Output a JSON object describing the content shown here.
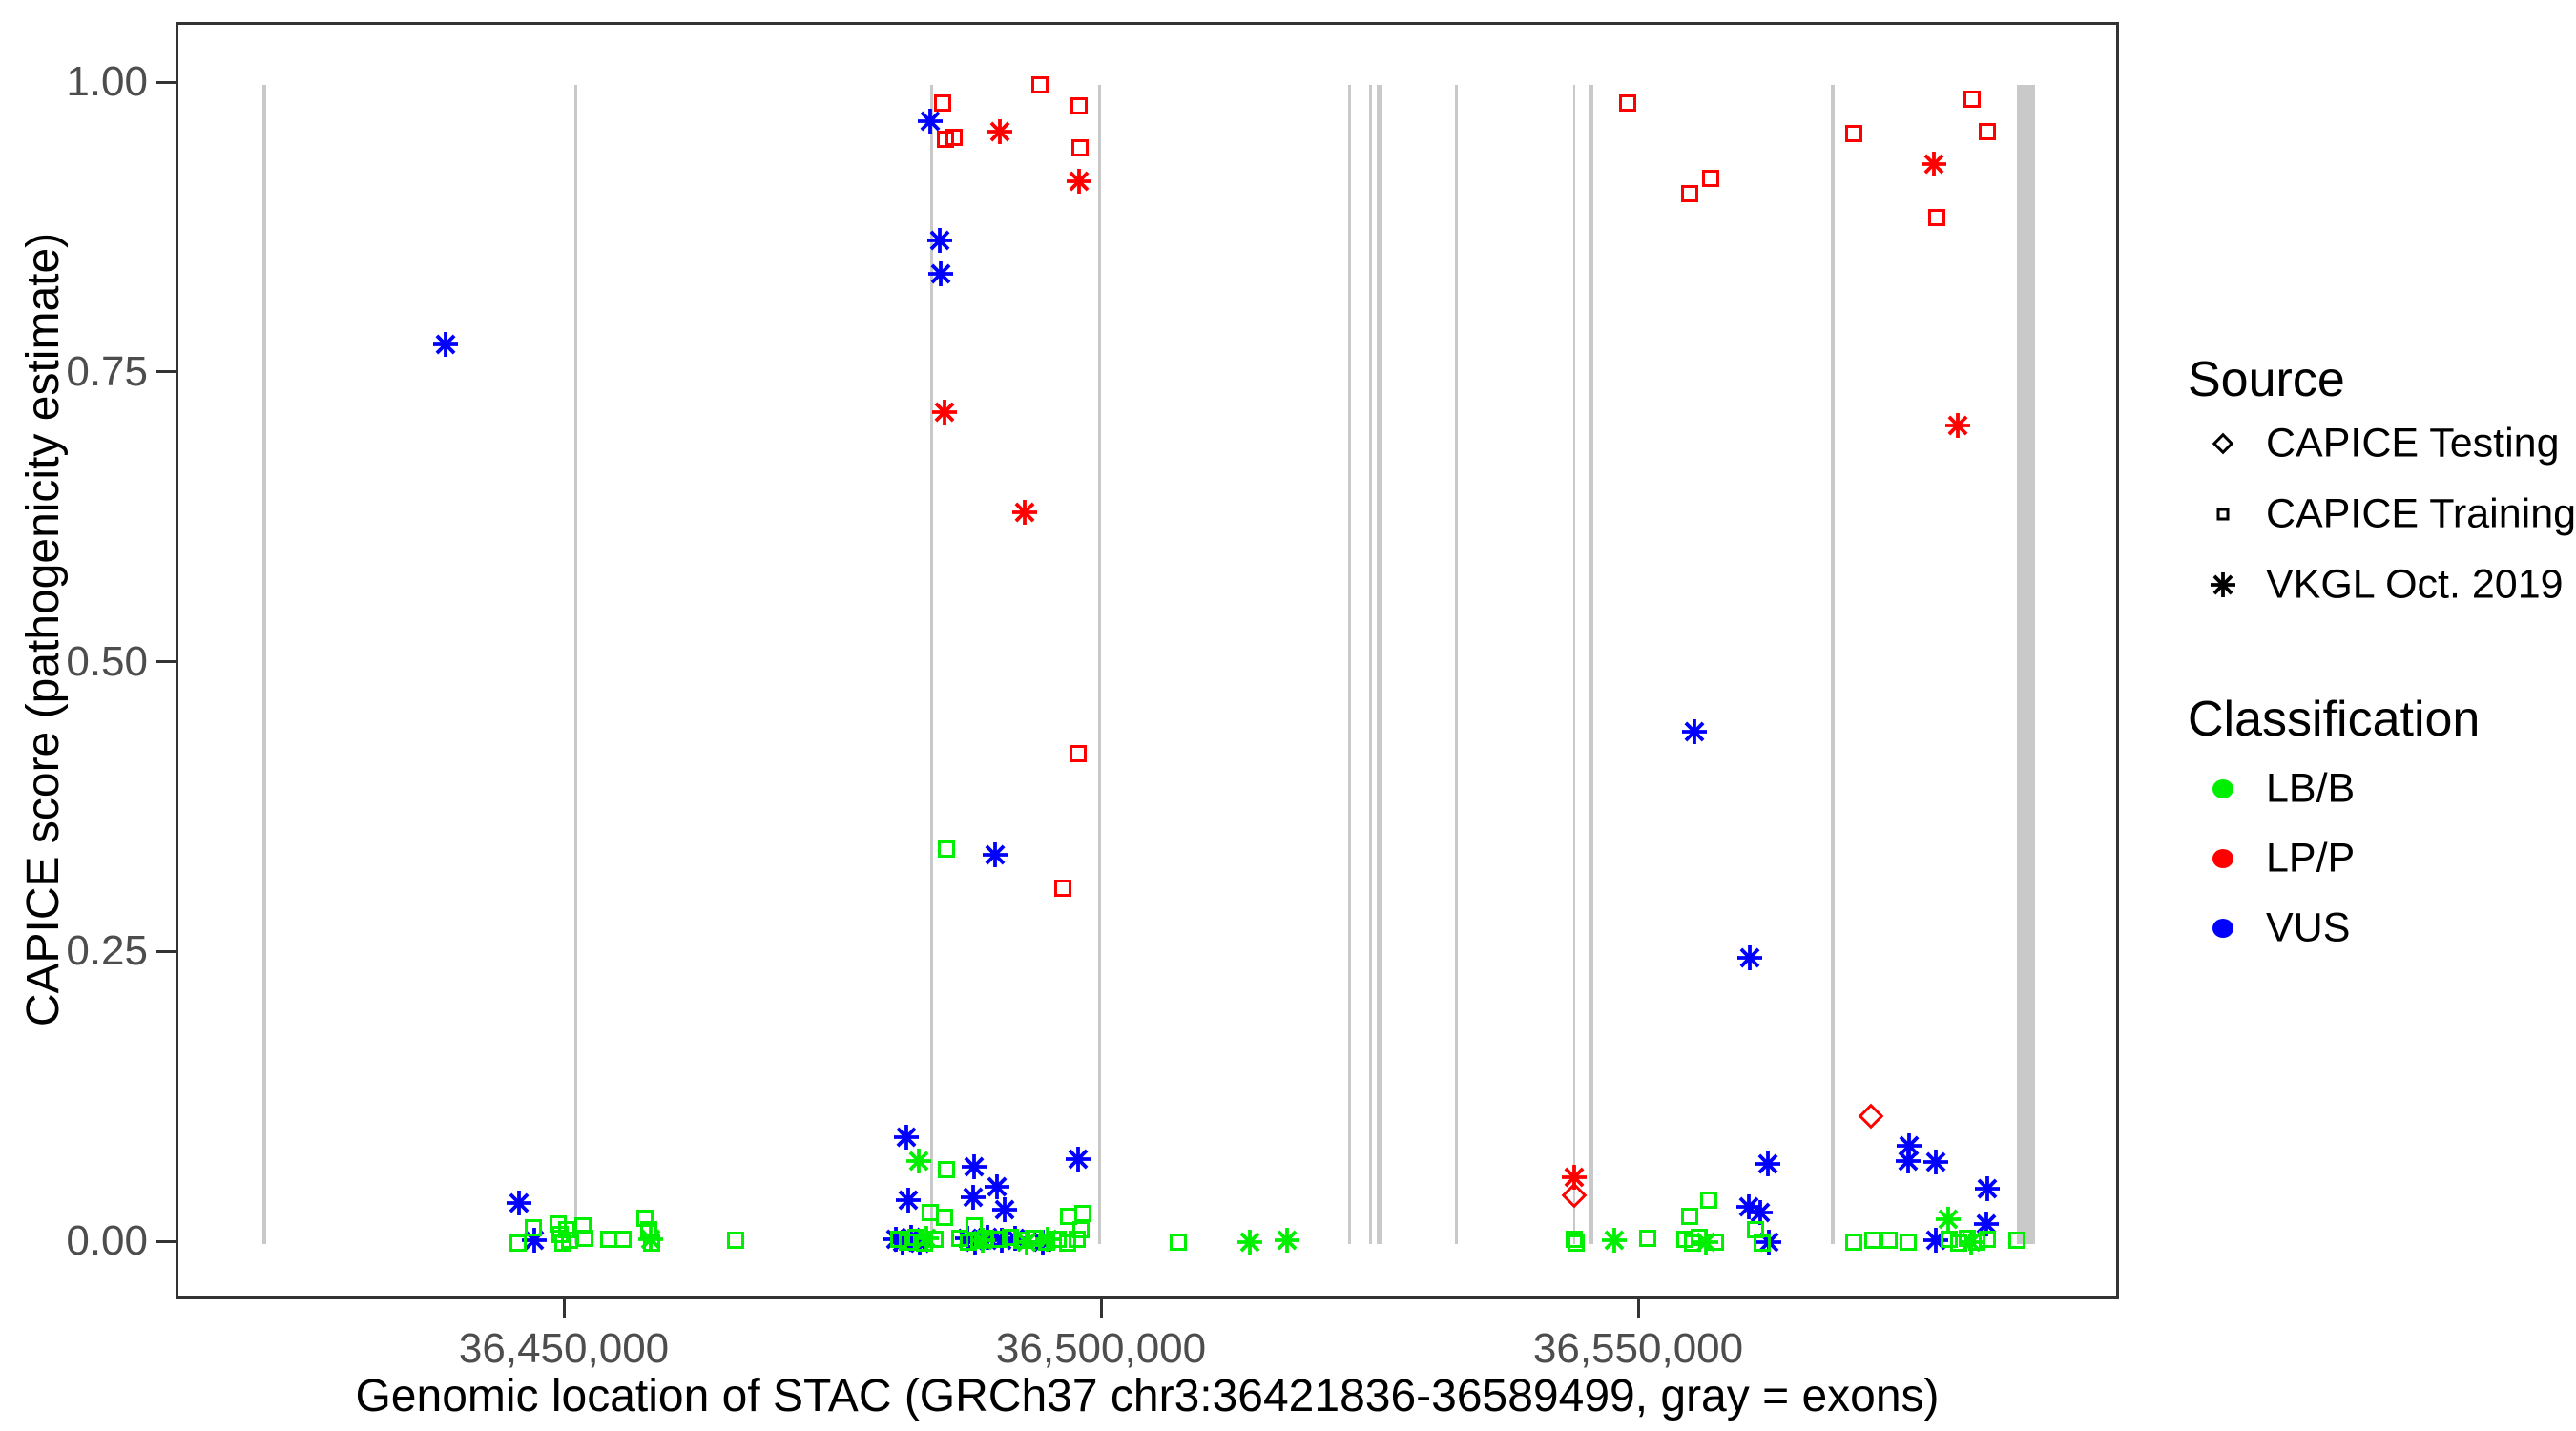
{
  "colors": {
    "lbb_green": "#00EE00",
    "lpp_red": "#FF0000",
    "vus_blue": "#0000FF",
    "exon_gray": "#C9C9C9",
    "axis_text_gray": "#4D4D4D",
    "panel_border": "#333333"
  },
  "legend": {
    "source": {
      "title": "Source",
      "items": [
        {
          "shape": "diamond",
          "label": "CAPICE Testing"
        },
        {
          "shape": "square",
          "label": "CAPICE Training"
        },
        {
          "shape": "asterisk",
          "label": "VKGL Oct. 2019"
        }
      ]
    },
    "classification": {
      "title": "Classification",
      "items": [
        {
          "color": "#00EE00",
          "label": "LB/B"
        },
        {
          "color": "#FF0000",
          "label": "LP/P"
        },
        {
          "color": "#0000FF",
          "label": "VUS"
        }
      ]
    }
  },
  "chart_data": {
    "type": "scatter",
    "title": "",
    "xlabel": "Genomic location of STAC (GRCh37 chr3:36421836-36589499, gray = exons)",
    "ylabel": "CAPICE score (pathogenicity estimate)",
    "background": "white",
    "grid": false,
    "legend_position": "right",
    "xlim": [
      36413850,
      36594760
    ],
    "ylim": [
      -0.0502,
      1.0519
    ],
    "x_ticks": [
      {
        "value": 36450000,
        "label": "36,450,000"
      },
      {
        "value": 36500000,
        "label": "36,500,000"
      },
      {
        "value": 36550000,
        "label": "36,550,000"
      }
    ],
    "y_ticks": [
      {
        "value": 0.0,
        "label": "0.00"
      },
      {
        "value": 0.25,
        "label": "0.25"
      },
      {
        "value": 0.5,
        "label": "0.50"
      },
      {
        "value": 0.75,
        "label": "0.75"
      },
      {
        "value": 1.0,
        "label": "1.00"
      }
    ],
    "exons_note": "gray vertical bars span score 0 to 1, genomic start/end pairs",
    "exons": [
      [
        36421700,
        36422050
      ],
      [
        36450670,
        36450930
      ],
      [
        36483800,
        36484060
      ],
      [
        36499430,
        36499690
      ],
      [
        36522740,
        36522920
      ],
      [
        36524700,
        36524880
      ],
      [
        36525410,
        36525590
      ],
      [
        36525670,
        36525850
      ],
      [
        36532690,
        36532870
      ],
      [
        36543680,
        36543900
      ],
      [
        36545080,
        36545520
      ],
      [
        36567680,
        36568040
      ],
      [
        36584970,
        36586660
      ]
    ],
    "series": [
      {
        "name": "CAPICE Testing / LP-P",
        "source": "CAPICE Testing",
        "classification": "LP/P",
        "shape": "diamond",
        "color": "#FF0000",
        "points": [
          [
            36543800,
            0.042
          ],
          [
            36571400,
            0.11
          ]
        ]
      },
      {
        "name": "CAPICE Training / LP-P",
        "source": "CAPICE Training",
        "classification": "LP/P",
        "shape": "square",
        "color": "#FF0000",
        "points": [
          [
            36494050,
            1.0
          ],
          [
            36485000,
            0.984
          ],
          [
            36485250,
            0.953
          ],
          [
            36486050,
            0.955
          ],
          [
            36497700,
            0.982
          ],
          [
            36497800,
            0.946
          ],
          [
            36497600,
            0.423
          ],
          [
            36496200,
            0.307
          ],
          [
            36548750,
            0.984
          ],
          [
            36554550,
            0.906
          ],
          [
            36556500,
            0.919
          ],
          [
            36569800,
            0.958
          ],
          [
            36577550,
            0.886
          ],
          [
            36580800,
            0.988
          ],
          [
            36582250,
            0.96
          ]
        ]
      },
      {
        "name": "VKGL Oct. 2019 / LP-P",
        "source": "VKGL Oct. 2019",
        "classification": "LP/P",
        "shape": "asterisk",
        "color": "#FF0000",
        "points": [
          [
            36490300,
            0.96
          ],
          [
            36497700,
            0.917
          ],
          [
            36485200,
            0.718
          ],
          [
            36492600,
            0.631
          ],
          [
            36543800,
            0.058
          ],
          [
            36577300,
            0.932
          ],
          [
            36579450,
            0.706
          ]
        ]
      },
      {
        "name": "VKGL Oct. 2019 / VUS",
        "source": "VKGL Oct. 2019",
        "classification": "VUS",
        "shape": "asterisk",
        "color": "#0000FF",
        "points": [
          [
            36438700,
            0.776
          ],
          [
            36483850,
            0.969
          ],
          [
            36484700,
            0.866
          ],
          [
            36484800,
            0.837
          ],
          [
            36489900,
            0.336
          ],
          [
            36555000,
            0.442
          ],
          [
            36560100,
            0.247
          ],
          [
            36445600,
            0.035
          ],
          [
            36481600,
            0.092
          ],
          [
            36481800,
            0.038
          ],
          [
            36487800,
            0.04
          ],
          [
            36487900,
            0.067
          ],
          [
            36490050,
            0.049
          ],
          [
            36490750,
            0.03
          ],
          [
            36497600,
            0.073
          ],
          [
            36560000,
            0.032
          ],
          [
            36561100,
            0.027
          ],
          [
            36561800,
            0.069
          ],
          [
            36574950,
            0.085
          ],
          [
            36574900,
            0.072
          ],
          [
            36577400,
            0.071
          ],
          [
            36582250,
            0.048
          ],
          [
            36582150,
            0.017
          ],
          [
            36447000,
            0.003
          ],
          [
            36480600,
            0.004
          ],
          [
            36481300,
            0.002
          ],
          [
            36482100,
            0.006
          ],
          [
            36482900,
            0.001
          ],
          [
            36487300,
            0.005
          ],
          [
            36488000,
            0.002
          ],
          [
            36489200,
            0.006
          ],
          [
            36490500,
            0.003
          ],
          [
            36491700,
            0.005
          ],
          [
            36494300,
            0.002
          ],
          [
            36561900,
            0.002
          ],
          [
            36577450,
            0.003
          ]
        ]
      },
      {
        "name": "VKGL Oct. 2019 / LB-B",
        "source": "VKGL Oct. 2019",
        "classification": "LB/B",
        "shape": "asterisk",
        "color": "#00EE00",
        "points": [
          [
            36482800,
            0.072
          ],
          [
            36457800,
            0.004
          ],
          [
            36483500,
            0.005
          ],
          [
            36488700,
            0.003
          ],
          [
            36492800,
            0.002
          ],
          [
            36494800,
            0.004
          ],
          [
            36513600,
            0.002
          ],
          [
            36517050,
            0.003
          ],
          [
            36547500,
            0.003
          ],
          [
            36556000,
            0.002
          ],
          [
            36578600,
            0.021
          ],
          [
            36580700,
            0.002
          ]
        ]
      },
      {
        "name": "CAPICE Training / LB-B",
        "source": "CAPICE Training",
        "classification": "LB/B",
        "shape": "square",
        "color": "#00EE00",
        "points": [
          [
            36445500,
            0.001
          ],
          [
            36446900,
            0.014
          ],
          [
            36449200,
            0.017
          ],
          [
            36449400,
            0.008
          ],
          [
            36449600,
            0.001
          ],
          [
            36450000,
            0.012
          ],
          [
            36450300,
            0.003
          ],
          [
            36451500,
            0.016
          ],
          [
            36451700,
            0.005
          ],
          [
            36453900,
            0.004
          ],
          [
            36455200,
            0.004
          ],
          [
            36457300,
            0.022
          ],
          [
            36457600,
            0.012
          ],
          [
            36457900,
            0.001
          ],
          [
            36465700,
            0.003
          ],
          [
            36483850,
            0.027
          ],
          [
            36485200,
            0.023
          ],
          [
            36485350,
            0.064
          ],
          [
            36485350,
            0.341
          ],
          [
            36487900,
            0.016
          ],
          [
            36488400,
            0.003
          ],
          [
            36496700,
            0.024
          ],
          [
            36497900,
            0.012
          ],
          [
            36498050,
            0.026
          ],
          [
            36480900,
            0.004
          ],
          [
            36481700,
            0.002
          ],
          [
            36482500,
            0.006
          ],
          [
            36483300,
            0.001
          ],
          [
            36484300,
            0.004
          ],
          [
            36486600,
            0.005
          ],
          [
            36487400,
            0.002
          ],
          [
            36489000,
            0.005
          ],
          [
            36490200,
            0.004
          ],
          [
            36491300,
            0.006
          ],
          [
            36492400,
            0.003
          ],
          [
            36493600,
            0.005
          ],
          [
            36494700,
            0.002
          ],
          [
            36495700,
            0.004
          ],
          [
            36496600,
            0.001
          ],
          [
            36497500,
            0.004
          ],
          [
            36506950,
            0.002
          ],
          [
            36543800,
            0.004
          ],
          [
            36543950,
            0.001
          ],
          [
            36550600,
            0.005
          ],
          [
            36554100,
            0.004
          ],
          [
            36554500,
            0.024
          ],
          [
            36554800,
            0.001
          ],
          [
            36555400,
            0.006
          ],
          [
            36556300,
            0.038
          ],
          [
            36556900,
            0.002
          ],
          [
            36560700,
            0.012
          ],
          [
            36561300,
            0.001
          ],
          [
            36569800,
            0.002
          ],
          [
            36571600,
            0.003
          ],
          [
            36573100,
            0.003
          ],
          [
            36574900,
            0.002
          ],
          [
            36578700,
            0.004
          ],
          [
            36579600,
            0.001
          ],
          [
            36580400,
            0.005
          ],
          [
            36581300,
            0.002
          ],
          [
            36582200,
            0.004
          ],
          [
            36585000,
            0.003
          ]
        ]
      }
    ]
  }
}
